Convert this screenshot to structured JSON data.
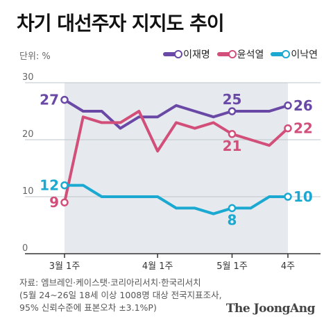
{
  "title": "차기 대선주자 지지도 추이",
  "unit_label": "단위: %",
  "colors": {
    "shade": "#e6eaee",
    "grid": "#bfc4c8",
    "axis": "#333333",
    "tick_text": "#666666"
  },
  "chart_data": {
    "type": "line",
    "ylim": [
      0,
      30
    ],
    "yticks": [
      0,
      10,
      20,
      30
    ],
    "x": [
      1,
      2,
      3,
      4,
      5,
      6,
      7,
      8,
      9,
      10,
      11,
      12,
      13
    ],
    "xtick_labels": [
      {
        "x": 1,
        "label": "3월 1주"
      },
      {
        "x": 6,
        "label": "4월 1주"
      },
      {
        "x": 10,
        "label": "5월 1주"
      },
      {
        "x": 13,
        "label": "4주"
      }
    ],
    "shade_range": [
      1,
      13
    ],
    "grid": true,
    "legend_position": "top-right",
    "series": [
      {
        "name": "이재명",
        "color": "#6a48a6",
        "values": [
          27,
          25,
          25,
          22,
          24,
          24,
          26,
          25,
          24,
          25,
          25,
          25,
          26
        ],
        "labeled": [
          {
            "index": 0,
            "text": "27",
            "pos": "left"
          },
          {
            "index": 9,
            "text": "25",
            "pos": "above"
          },
          {
            "index": 12,
            "text": "26",
            "pos": "right"
          }
        ]
      },
      {
        "name": "윤석열",
        "color": "#d24f7a",
        "values": [
          9,
          24,
          23,
          23,
          25,
          18,
          23,
          22,
          23,
          21,
          20,
          19,
          22
        ],
        "labeled": [
          {
            "index": 0,
            "text": "9",
            "pos": "left"
          },
          {
            "index": 9,
            "text": "21",
            "pos": "below"
          },
          {
            "index": 12,
            "text": "22",
            "pos": "right"
          }
        ]
      },
      {
        "name": "이낙연",
        "color": "#1ba9d1",
        "values": [
          12,
          12,
          10,
          10,
          10,
          10,
          8,
          8,
          7,
          8,
          8,
          10,
          10
        ],
        "labeled": [
          {
            "index": 0,
            "text": "12",
            "pos": "left"
          },
          {
            "index": 9,
            "text": "8",
            "pos": "below"
          },
          {
            "index": 12,
            "text": "10",
            "pos": "right"
          }
        ]
      }
    ]
  },
  "source_lines": [
    "자료: 엠브레인·케이스탯·코리아리서치·한국리서치",
    "(5월 24~26일 18세 이상 1008명 대상 전국지표조사,",
    "95% 신뢰수준에 표본오차 ±3.1%P)"
  ],
  "brand": "The JoongAng"
}
